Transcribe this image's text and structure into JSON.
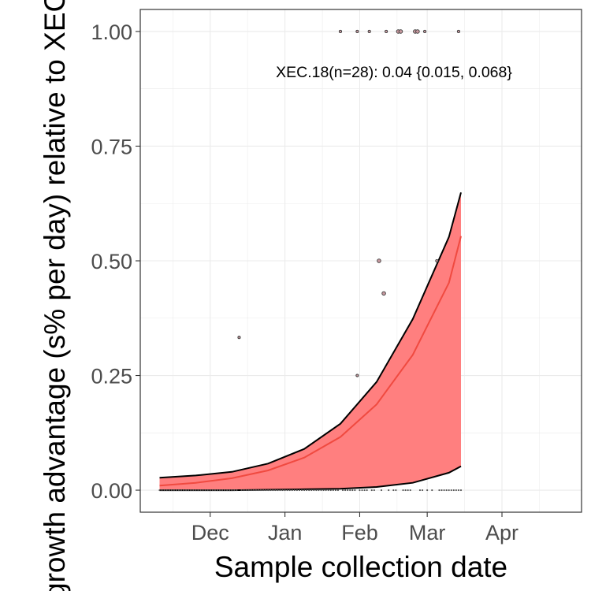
{
  "chart_data": {
    "type": "scatter",
    "title": "",
    "xlabel": "Sample collection date",
    "ylabel": "growth advantage (s% per day) relative to XEC (stricto) in Newfoundland and",
    "x_tick_labels": [
      "Dec",
      "Jan",
      "Feb",
      "Mar",
      "Apr"
    ],
    "x_ticks": [
      "2024-12-01",
      "2025-01-01",
      "2025-02-01",
      "2025-03-01",
      "2025-04-01"
    ],
    "xlim": [
      "2024-11-02",
      "2025-05-04"
    ],
    "y_tick_labels": [
      "0.00",
      "0.25",
      "0.50",
      "0.75",
      "1.00"
    ],
    "y_ticks": [
      0,
      0.25,
      0.5,
      0.75,
      1.0
    ],
    "ylim": [
      -0.048,
      1.048
    ],
    "grid": true,
    "colors": {
      "fit": "#f8766d",
      "ribbon": "#ff7f7f",
      "bound": "#000000",
      "panel_border": "#333333",
      "grid": "#ebebeb"
    },
    "annotation": "XEC.18(n=28): 0.04 {0.015, 0.068}",
    "fit": {
      "x": [
        "2024-11-10",
        "2024-11-25",
        "2024-12-10",
        "2024-12-25",
        "2025-01-09",
        "2025-01-24",
        "2025-02-08",
        "2025-02-23",
        "2025-03-10",
        "2025-03-15"
      ],
      "mean": [
        0.01,
        0.016,
        0.026,
        0.043,
        0.071,
        0.116,
        0.187,
        0.295,
        0.452,
        0.554
      ],
      "upper": [
        0.027,
        0.032,
        0.04,
        0.058,
        0.09,
        0.145,
        0.236,
        0.373,
        0.552,
        0.649
      ],
      "lower": [
        0.0,
        0.0,
        0.0,
        0.001,
        0.002,
        0.003,
        0.007,
        0.016,
        0.038,
        0.052
      ]
    },
    "points": [
      {
        "x": "2024-12-13",
        "y": 0.333,
        "size": 1
      },
      {
        "x": "2025-01-31",
        "y": 0.25,
        "size": 1
      },
      {
        "x": "2025-02-09",
        "y": 0.5,
        "size": 2
      },
      {
        "x": "2025-02-11",
        "y": 0.429,
        "size": 2
      },
      {
        "x": "2025-03-05",
        "y": 0.5,
        "size": 1
      },
      {
        "x": "2025-01-24",
        "y": 1.0,
        "size": 1
      },
      {
        "x": "2025-01-31",
        "y": 1.0,
        "size": 1
      },
      {
        "x": "2025-02-05",
        "y": 1.0,
        "size": 1
      },
      {
        "x": "2025-02-12",
        "y": 1.0,
        "size": 1
      },
      {
        "x": "2025-02-17",
        "y": 1.0,
        "size": 2
      },
      {
        "x": "2025-02-18",
        "y": 1.0,
        "size": 2
      },
      {
        "x": "2025-02-24",
        "y": 1.0,
        "size": 2
      },
      {
        "x": "2025-02-25",
        "y": 1.0,
        "size": 2
      },
      {
        "x": "2025-02-28",
        "y": 1.0,
        "size": 1
      },
      {
        "x": "2025-03-14",
        "y": 1.0,
        "size": 1
      }
    ],
    "zero_points_x": [
      "2024-11-10",
      "2024-11-11",
      "2024-11-12",
      "2024-11-13",
      "2024-11-14",
      "2024-11-15",
      "2024-11-16",
      "2024-11-17",
      "2024-11-18",
      "2024-11-19",
      "2024-11-20",
      "2024-11-21",
      "2024-11-22",
      "2024-11-23",
      "2024-11-24",
      "2024-11-25",
      "2024-11-26",
      "2024-11-27",
      "2024-11-28",
      "2024-11-29",
      "2024-11-30",
      "2024-12-01",
      "2024-12-02",
      "2024-12-03",
      "2024-12-04",
      "2024-12-05",
      "2024-12-06",
      "2024-12-07",
      "2024-12-08",
      "2024-12-09",
      "2024-12-10",
      "2024-12-11",
      "2024-12-12",
      "2024-12-14",
      "2024-12-15",
      "2024-12-16",
      "2024-12-17",
      "2024-12-18",
      "2024-12-19",
      "2024-12-20",
      "2024-12-21",
      "2024-12-22",
      "2024-12-23",
      "2024-12-24",
      "2024-12-25",
      "2024-12-26",
      "2024-12-27",
      "2024-12-28",
      "2024-12-29",
      "2024-12-30",
      "2024-12-31",
      "2025-01-01",
      "2025-01-02",
      "2025-01-03",
      "2025-01-04",
      "2025-01-05",
      "2025-01-06",
      "2025-01-07",
      "2025-01-08",
      "2025-01-09",
      "2025-01-10",
      "2025-01-11",
      "2025-01-12",
      "2025-01-13",
      "2025-01-14",
      "2025-01-15",
      "2025-01-16",
      "2025-01-17",
      "2025-01-18",
      "2025-01-19",
      "2025-01-20",
      "2025-01-21",
      "2025-01-22",
      "2025-01-23",
      "2025-01-25",
      "2025-01-26",
      "2025-01-27",
      "2025-01-28",
      "2025-01-29",
      "2025-01-30",
      "2025-02-01",
      "2025-02-02",
      "2025-02-03",
      "2025-02-04",
      "2025-02-06",
      "2025-02-07",
      "2025-02-10",
      "2025-02-13",
      "2025-02-15",
      "2025-02-16",
      "2025-02-19",
      "2025-02-20",
      "2025-02-21",
      "2025-02-22",
      "2025-02-26",
      "2025-02-27",
      "2025-03-01",
      "2025-03-03",
      "2025-03-06",
      "2025-03-07",
      "2025-03-08",
      "2025-03-09",
      "2025-03-10",
      "2025-03-11",
      "2025-03-12",
      "2025-03-13",
      "2025-03-14",
      "2025-03-15"
    ]
  }
}
